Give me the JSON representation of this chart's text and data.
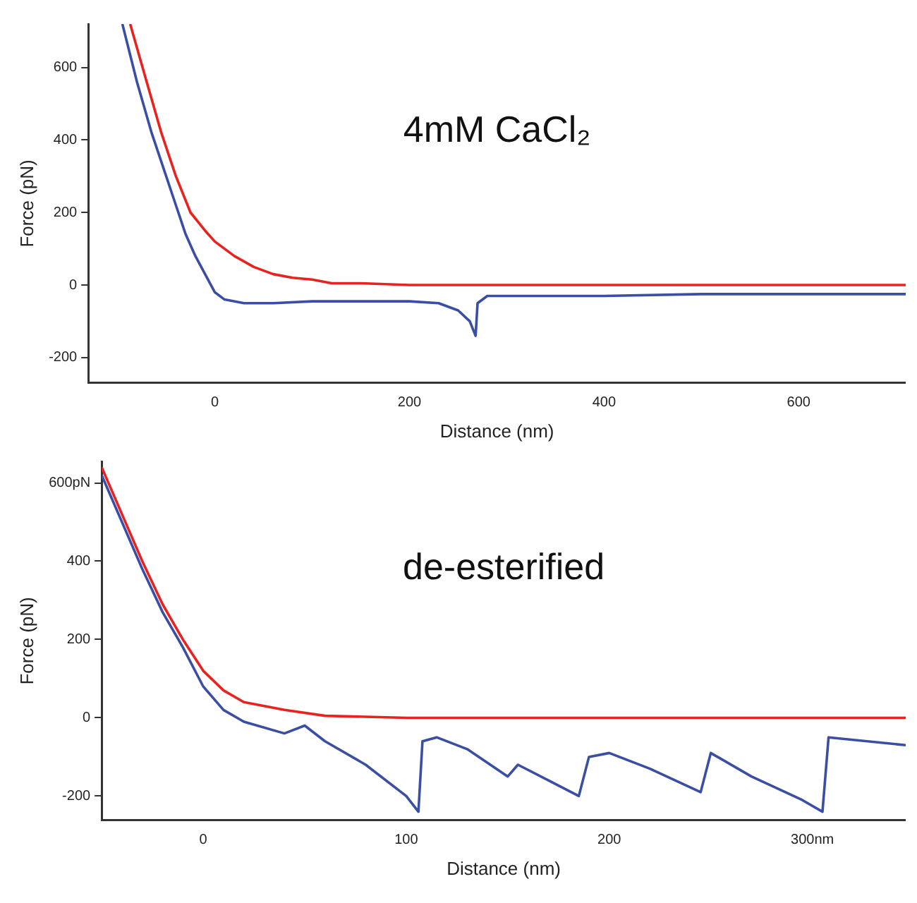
{
  "chart_data": [
    {
      "type": "line",
      "xlabel": "Distance (nm)",
      "ylabel": "Force (pN)",
      "annotations": [
        "4mM CaCl₂"
      ],
      "xlim": [
        -130,
        710
      ],
      "ylim": [
        -270,
        720
      ],
      "xticks": [
        0,
        200,
        400,
        600
      ],
      "yticks": [
        -200,
        0,
        200,
        400,
        600
      ],
      "grid": false,
      "legend": false,
      "marker": "none",
      "line_style": "solid",
      "series": [
        {
          "color": "#e8231f",
          "x": [
            -87,
            -70,
            -55,
            -40,
            -25,
            -10,
            0,
            20,
            40,
            60,
            80,
            100,
            120,
            150,
            200,
            300,
            400,
            500,
            600,
            710
          ],
          "values": [
            720,
            560,
            420,
            300,
            200,
            150,
            120,
            80,
            50,
            30,
            20,
            15,
            5,
            5,
            0,
            0,
            0,
            0,
            0,
            0
          ]
        },
        {
          "color": "#3a4fa3",
          "x": [
            -95,
            -80,
            -65,
            -50,
            -40,
            -30,
            -20,
            -10,
            0,
            10,
            30,
            60,
            100,
            150,
            200,
            230,
            250,
            262,
            268,
            270,
            280,
            400,
            500,
            600,
            710
          ],
          "values": [
            720,
            560,
            420,
            300,
            220,
            140,
            80,
            30,
            -20,
            -40,
            -50,
            -50,
            -45,
            -45,
            -45,
            -50,
            -70,
            -100,
            -140,
            -50,
            -30,
            -30,
            -25,
            -25,
            -25
          ]
        }
      ]
    },
    {
      "type": "line",
      "xlabel": "Distance (nm)",
      "ylabel": "Force (pN)",
      "annotations": [
        "de-esterified"
      ],
      "xlim": [
        -50,
        346
      ],
      "ylim": [
        -262,
        655
      ],
      "xticks": [
        0,
        100,
        200,
        {
          "value": 300,
          "label": "300nm"
        }
      ],
      "yticks": [
        -200,
        0,
        200,
        400,
        {
          "value": 600,
          "label": "600pN"
        }
      ],
      "grid": false,
      "legend": false,
      "marker": "none",
      "line_style": "solid",
      "series": [
        {
          "color": "#e8231f",
          "x": [
            -50,
            -40,
            -30,
            -20,
            -10,
            0,
            10,
            20,
            40,
            60,
            100,
            200,
            346
          ],
          "values": [
            640,
            520,
            400,
            290,
            200,
            120,
            70,
            40,
            20,
            5,
            0,
            0,
            0
          ]
        },
        {
          "color": "#3a4fa3",
          "x": [
            -50,
            -40,
            -30,
            -20,
            -10,
            0,
            10,
            20,
            40,
            50,
            60,
            80,
            100,
            106,
            108,
            115,
            130,
            150,
            155,
            170,
            185,
            190,
            200,
            220,
            245,
            250,
            270,
            295,
            305,
            308,
            346
          ],
          "values": [
            620,
            500,
            380,
            270,
            180,
            80,
            20,
            -10,
            -40,
            -20,
            -60,
            -120,
            -200,
            -240,
            -60,
            -50,
            -80,
            -150,
            -120,
            -160,
            -200,
            -100,
            -90,
            -130,
            -190,
            -90,
            -150,
            -210,
            -240,
            -50,
            -70
          ]
        }
      ]
    }
  ]
}
